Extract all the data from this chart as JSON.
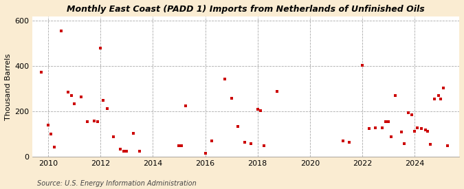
{
  "title": "Monthly East Coast (PADD 1) Imports from Netherlands of Unfinished Oils",
  "ylabel": "Thousand Barrels",
  "source": "Source: U.S. Energy Information Administration",
  "background_color": "#faecd2",
  "plot_bg_color": "#ffffff",
  "point_color": "#cc0000",
  "xlim": [
    2009.4,
    2025.7
  ],
  "ylim": [
    0,
    620
  ],
  "yticks": [
    0,
    200,
    400,
    600
  ],
  "xticks": [
    2010,
    2012,
    2014,
    2016,
    2018,
    2020,
    2022,
    2024
  ],
  "data_points": [
    [
      2009.75,
      375
    ],
    [
      2010.0,
      140
    ],
    [
      2010.1,
      100
    ],
    [
      2010.25,
      45
    ],
    [
      2010.5,
      555
    ],
    [
      2010.75,
      285
    ],
    [
      2010.9,
      270
    ],
    [
      2011.0,
      235
    ],
    [
      2011.25,
      265
    ],
    [
      2011.5,
      155
    ],
    [
      2011.75,
      160
    ],
    [
      2011.9,
      155
    ],
    [
      2012.0,
      480
    ],
    [
      2012.1,
      250
    ],
    [
      2012.25,
      215
    ],
    [
      2012.5,
      90
    ],
    [
      2012.75,
      35
    ],
    [
      2012.9,
      25
    ],
    [
      2013.0,
      25
    ],
    [
      2013.25,
      105
    ],
    [
      2013.5,
      25
    ],
    [
      2015.0,
      50
    ],
    [
      2015.1,
      50
    ],
    [
      2015.25,
      225
    ],
    [
      2016.0,
      15
    ],
    [
      2016.25,
      70
    ],
    [
      2016.75,
      345
    ],
    [
      2017.0,
      260
    ],
    [
      2017.25,
      135
    ],
    [
      2017.5,
      65
    ],
    [
      2017.75,
      60
    ],
    [
      2018.0,
      210
    ],
    [
      2018.1,
      205
    ],
    [
      2018.25,
      50
    ],
    [
      2018.75,
      290
    ],
    [
      2021.25,
      70
    ],
    [
      2021.5,
      65
    ],
    [
      2022.0,
      405
    ],
    [
      2022.25,
      125
    ],
    [
      2022.5,
      130
    ],
    [
      2022.75,
      130
    ],
    [
      2022.9,
      155
    ],
    [
      2023.0,
      155
    ],
    [
      2023.1,
      90
    ],
    [
      2023.25,
      270
    ],
    [
      2023.5,
      110
    ],
    [
      2023.6,
      60
    ],
    [
      2023.75,
      195
    ],
    [
      2023.9,
      185
    ],
    [
      2024.0,
      115
    ],
    [
      2024.1,
      130
    ],
    [
      2024.25,
      125
    ],
    [
      2024.4,
      120
    ],
    [
      2024.5,
      115
    ],
    [
      2024.6,
      55
    ],
    [
      2024.75,
      255
    ],
    [
      2024.9,
      270
    ],
    [
      2025.0,
      255
    ],
    [
      2025.1,
      305
    ],
    [
      2025.25,
      50
    ]
  ]
}
